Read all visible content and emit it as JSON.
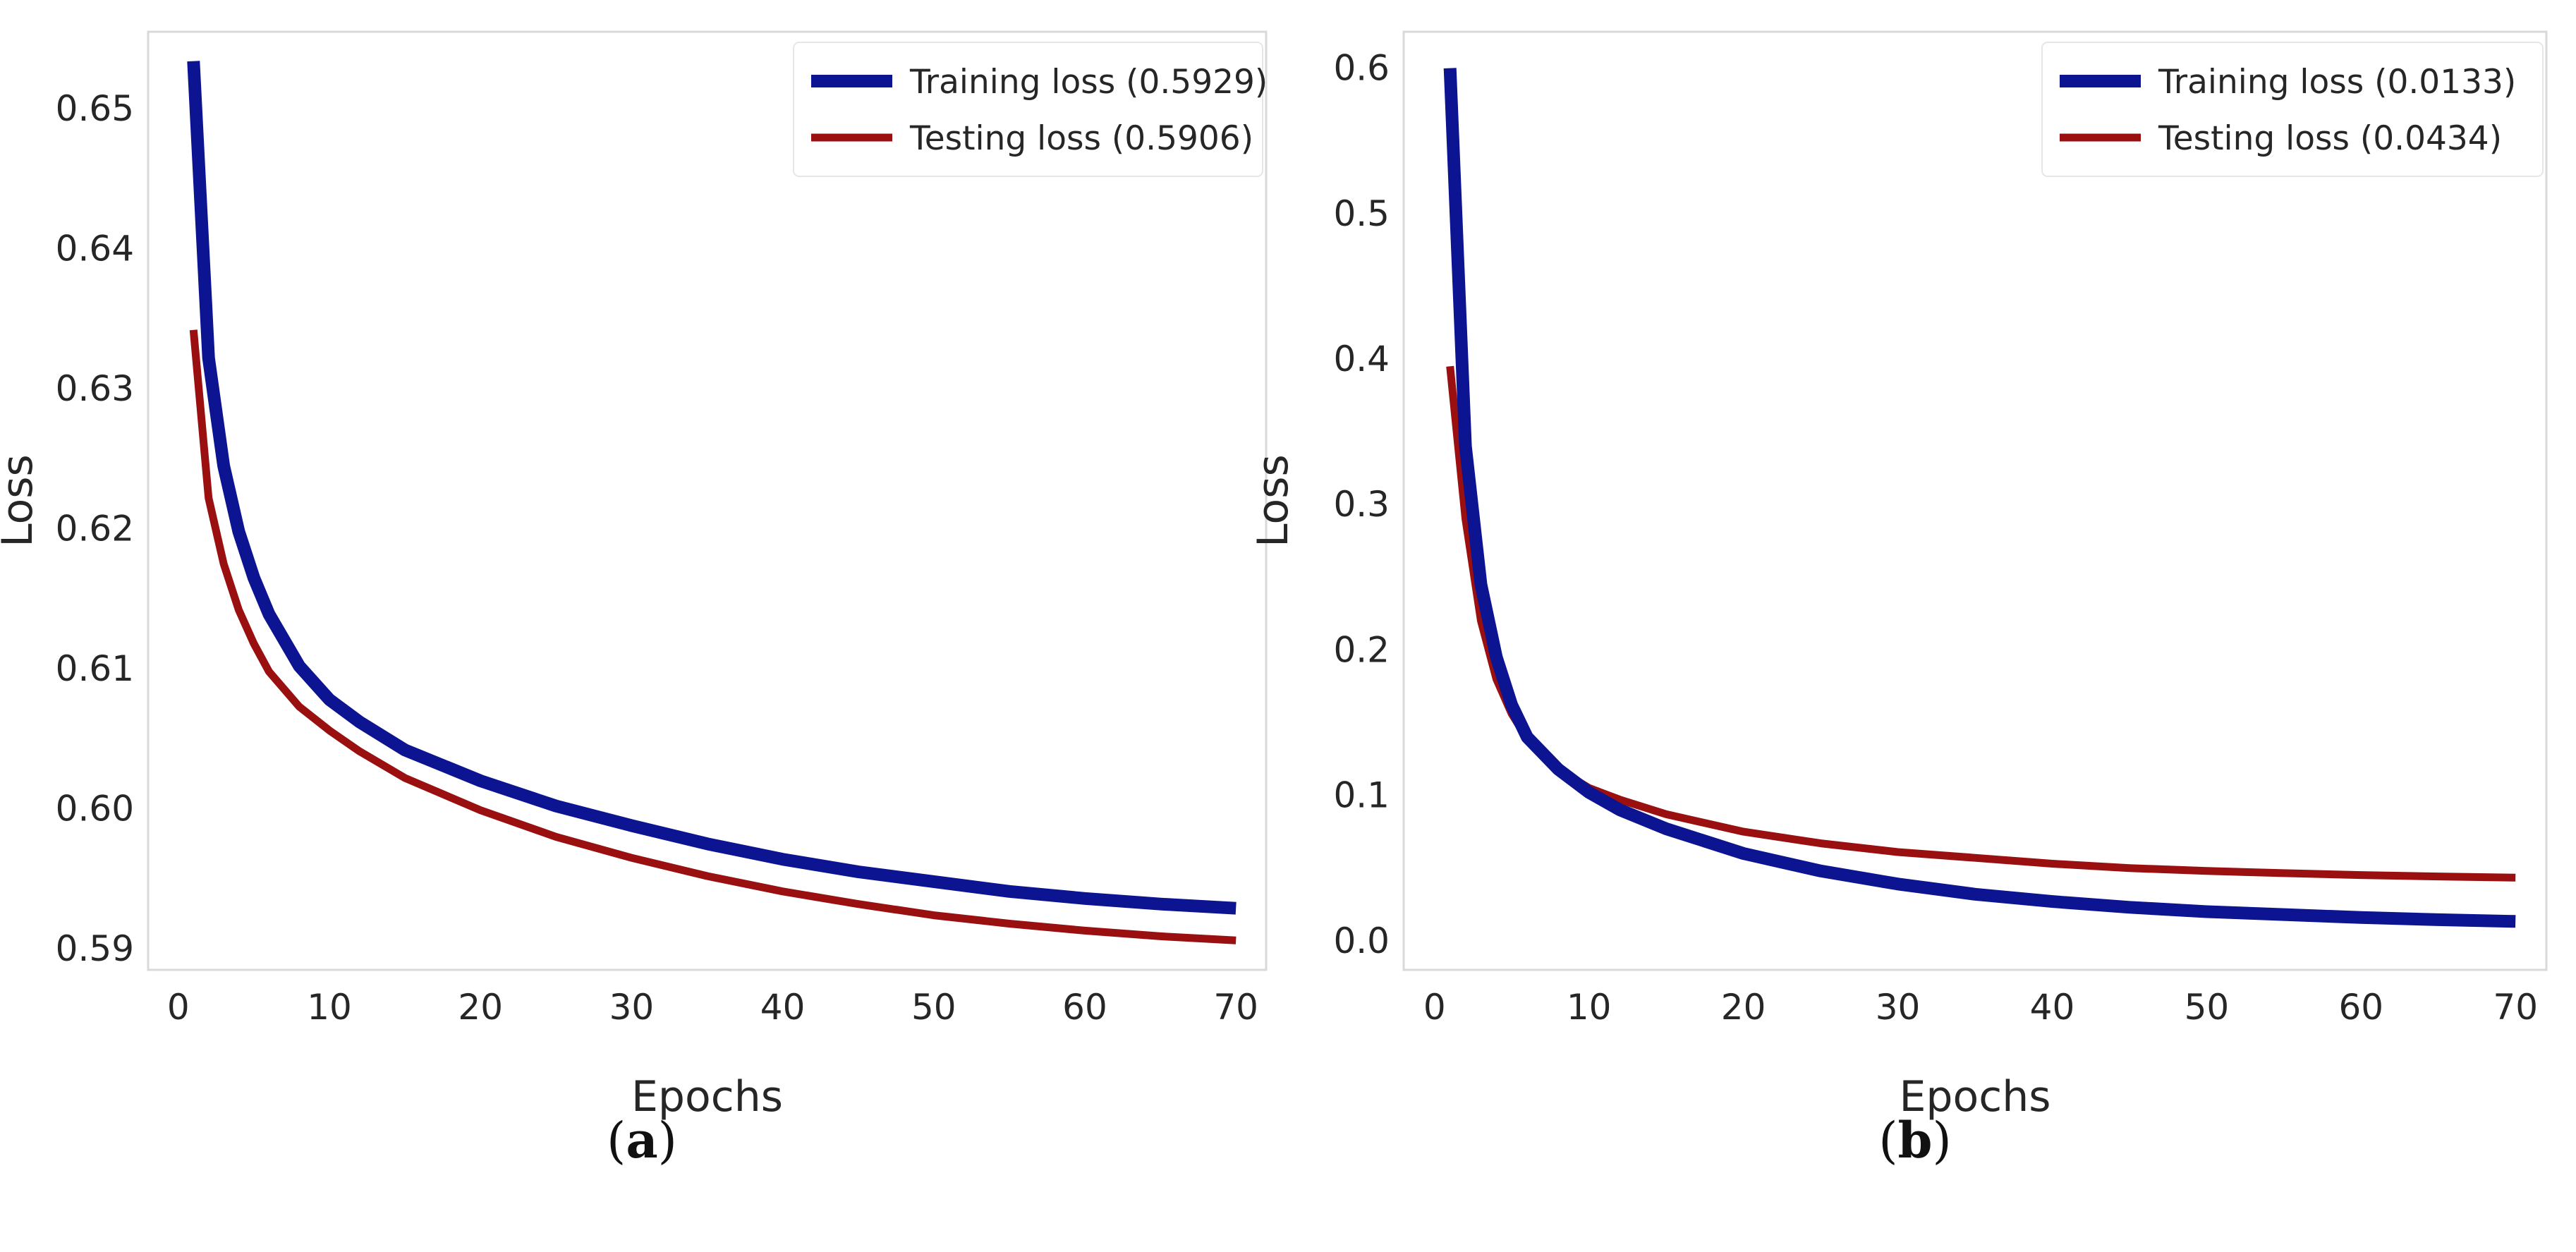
{
  "colors": {
    "training": "#0d1491",
    "testing": "#9a1010",
    "frame": "#d9d9d9",
    "text": "#262626"
  },
  "chart_data": [
    {
      "type": "line",
      "panel": "a",
      "caption_open": "(",
      "caption_letter": "a",
      "caption_close": ")",
      "xlabel": "Epochs",
      "ylabel": "Loss",
      "xlim": [
        -2,
        72
      ],
      "ylim": [
        0.5885,
        0.6555
      ],
      "xticks": [
        0,
        10,
        20,
        30,
        40,
        50,
        60,
        70
      ],
      "yticks": [
        0.59,
        0.6,
        0.61,
        0.62,
        0.63,
        0.64,
        0.65
      ],
      "ytick_labels": [
        "0.59",
        "0.60",
        "0.61",
        "0.62",
        "0.63",
        "0.64",
        "0.65"
      ],
      "legend_position": "top-right",
      "series": [
        {
          "name": "Training loss (0.5929)",
          "color": "#0d1491",
          "thick": true,
          "x": [
            1,
            2,
            3,
            4,
            5,
            6,
            8,
            10,
            12,
            15,
            20,
            25,
            30,
            35,
            40,
            45,
            50,
            55,
            60,
            65,
            70
          ],
          "y": [
            0.6534,
            0.6322,
            0.6245,
            0.6198,
            0.6165,
            0.6139,
            0.6102,
            0.6078,
            0.6062,
            0.6042,
            0.602,
            0.6002,
            0.5988,
            0.5975,
            0.5964,
            0.5955,
            0.5948,
            0.5941,
            0.5936,
            0.5932,
            0.5929
          ]
        },
        {
          "name": "Testing loss (0.5906)",
          "color": "#9a1010",
          "thick": false,
          "x": [
            1,
            2,
            3,
            4,
            5,
            6,
            8,
            10,
            12,
            15,
            20,
            25,
            30,
            35,
            40,
            45,
            50,
            55,
            60,
            65,
            70
          ],
          "y": [
            0.6342,
            0.6222,
            0.6175,
            0.6142,
            0.6118,
            0.6098,
            0.6073,
            0.6056,
            0.6041,
            0.6022,
            0.5999,
            0.598,
            0.5965,
            0.5952,
            0.5941,
            0.5932,
            0.5924,
            0.5918,
            0.5913,
            0.5909,
            0.5906
          ]
        }
      ]
    },
    {
      "type": "line",
      "panel": "b",
      "caption_open": "(",
      "caption_letter": "b",
      "caption_close": ")",
      "xlabel": "Epochs",
      "ylabel": "Loss",
      "xlim": [
        -2,
        72
      ],
      "ylim": [
        -0.02,
        0.625
      ],
      "xticks": [
        0,
        10,
        20,
        30,
        40,
        50,
        60,
        70
      ],
      "yticks": [
        0,
        0.1,
        0.2,
        0.3,
        0.4,
        0.5,
        0.6
      ],
      "ytick_labels": [
        "0.0",
        "0.1",
        "0.2",
        "0.3",
        "0.4",
        "0.5",
        "0.6"
      ],
      "legend_position": "top-right",
      "series": [
        {
          "name": "Training loss (0.0133)",
          "color": "#0d1491",
          "thick": true,
          "x": [
            1,
            2,
            3,
            4,
            5,
            6,
            8,
            10,
            12,
            15,
            20,
            25,
            30,
            35,
            40,
            45,
            50,
            55,
            60,
            65,
            70
          ],
          "y": [
            0.6,
            0.34,
            0.245,
            0.195,
            0.162,
            0.14,
            0.118,
            0.102,
            0.09,
            0.077,
            0.06,
            0.048,
            0.039,
            0.032,
            0.027,
            0.023,
            0.02,
            0.018,
            0.016,
            0.0145,
            0.0133
          ]
        },
        {
          "name": "Testing loss (0.0434)",
          "color": "#9a1010",
          "thick": false,
          "x": [
            1,
            2,
            3,
            4,
            5,
            6,
            8,
            10,
            12,
            15,
            20,
            25,
            30,
            35,
            40,
            45,
            50,
            55,
            60,
            65,
            70
          ],
          "y": [
            0.395,
            0.29,
            0.22,
            0.18,
            0.156,
            0.139,
            0.118,
            0.105,
            0.097,
            0.087,
            0.075,
            0.067,
            0.061,
            0.057,
            0.053,
            0.05,
            0.048,
            0.0465,
            0.0452,
            0.0442,
            0.0434
          ]
        }
      ]
    }
  ]
}
